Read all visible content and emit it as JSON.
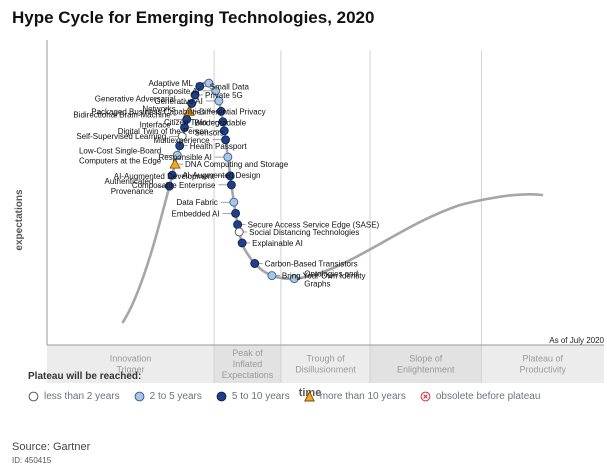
{
  "chart_data": {
    "type": "hype-cycle",
    "title": "Hype Cycle for Emerging Technologies, 2020",
    "ylabel": "expectations",
    "xlabel": "time",
    "as_of": "As of July 2020",
    "phases": [
      {
        "label_lines": [
          "Innovation",
          "Trigger"
        ],
        "x_start": 0.0,
        "x_end": 0.3
      },
      {
        "label_lines": [
          "Peak of",
          "Inflated",
          "Expectations"
        ],
        "x_start": 0.3,
        "x_end": 0.42
      },
      {
        "label_lines": [
          "Trough of",
          "Disillusionment"
        ],
        "x_start": 0.42,
        "x_end": 0.58
      },
      {
        "label_lines": [
          "Slope of",
          "Enlightenment"
        ],
        "x_start": 0.58,
        "x_end": 0.78
      },
      {
        "label_lines": [
          "Plateau of",
          "Productivity"
        ],
        "x_start": 0.78,
        "x_end": 1.0
      }
    ],
    "legend": {
      "title": "Plateau will be reached:",
      "items": [
        {
          "key": "lt2",
          "label": "less than 2 years",
          "shape": "circle",
          "fill": "#ffffff",
          "stroke": "#555555"
        },
        {
          "key": "2to5",
          "label": "2 to 5 years",
          "shape": "circle",
          "fill": "#a9c6e6",
          "stroke": "#3b5f8f"
        },
        {
          "key": "5to10",
          "label": "5 to 10 years",
          "shape": "circle",
          "fill": "#1f3f8a",
          "stroke": "#0f2450"
        },
        {
          "key": "gt10",
          "label": "more than 10 years",
          "shape": "triangle",
          "fill": "#f5a623",
          "stroke": "#7a4a00"
        },
        {
          "key": "obsolete",
          "label": "obsolete before plateau",
          "shape": "xcircle",
          "fill": "#ffffff",
          "stroke": "#d0343c"
        }
      ]
    },
    "technologies": [
      {
        "name": "Authenticated Provenance",
        "label_lines": [
          "Authenticated",
          "Provenance"
        ],
        "class": "5to10",
        "side": "left",
        "pos": 0.19
      },
      {
        "name": "AI-Augmented Design",
        "label_lines": [
          "AI-Augmented Design"
        ],
        "class": "5to10",
        "side": "right",
        "pos": 0.205
      },
      {
        "name": "DNA Computing and Storage",
        "label_lines": [
          "DNA Computing and Storage"
        ],
        "class": "gt10",
        "side": "right",
        "pos": 0.22
      },
      {
        "name": "Low-Cost Single-Board Computers at the Edge",
        "label_lines": [
          "Low-Cost Single-Board",
          "Computers at the Edge"
        ],
        "class": "2to5",
        "side": "left",
        "pos": 0.232
      },
      {
        "name": "Health Passport",
        "label_lines": [
          "Health Passport"
        ],
        "class": "5to10",
        "side": "right",
        "pos": 0.245
      },
      {
        "name": "Self-Supervised Learning",
        "label_lines": [
          "Self-Supervised Learning"
        ],
        "class": "lt2",
        "side": "left",
        "pos": 0.258
      },
      {
        "name": "Biodegradable Sensors",
        "label_lines": [
          "Biodegradable",
          "Sensors"
        ],
        "class": "5to10",
        "side": "right",
        "pos": 0.27
      },
      {
        "name": "Bidirectional Brain-Machine Interface",
        "label_lines": [
          "Bidirectional Brain-Machine",
          "Interface"
        ],
        "class": "5to10",
        "side": "left",
        "pos": 0.281
      },
      {
        "name": "Differential Privacy",
        "label_lines": [
          "Differential Privacy"
        ],
        "class": "gt10",
        "side": "right",
        "pos": 0.292
      },
      {
        "name": "Generative Adversarial Networks",
        "label_lines": [
          "Generative Adversarial",
          "Networks"
        ],
        "class": "5to10",
        "side": "left",
        "pos": 0.303
      },
      {
        "name": "Private 5G",
        "label_lines": [
          "Private 5G"
        ],
        "class": "5to10",
        "side": "right",
        "pos": 0.315
      },
      {
        "name": "Small Data",
        "label_lines": [
          "Small Data"
        ],
        "class": "5to10",
        "side": "right",
        "pos": 0.328
      },
      {
        "name": "Adaptive ML",
        "label_lines": [
          "Adaptive ML"
        ],
        "class": "2to5",
        "side": "left",
        "pos": 0.342
      },
      {
        "name": "Composite AI",
        "label_lines": [
          "Composite AI"
        ],
        "class": "2to5",
        "side": "left",
        "pos": 0.356
      },
      {
        "name": "Generative AI",
        "label_lines": [
          "Generative AI"
        ],
        "class": "2to5",
        "side": "left",
        "pos": 0.37
      },
      {
        "name": "Packaged Business Capabilities",
        "label_lines": [
          "Packaged Business Capabilities"
        ],
        "class": "5to10",
        "side": "left",
        "pos": 0.384
      },
      {
        "name": "Citizen Twin",
        "label_lines": [
          "Citizen Twin"
        ],
        "class": "5to10",
        "side": "left",
        "pos": 0.398
      },
      {
        "name": "Digital Twin of the Person",
        "label_lines": [
          "Digital Twin of the Person"
        ],
        "class": "5to10",
        "side": "left",
        "pos": 0.41
      },
      {
        "name": "Multiexperience",
        "label_lines": [
          "Multiexperience"
        ],
        "class": "5to10",
        "side": "left",
        "pos": 0.422
      },
      {
        "name": "Responsible AI",
        "label_lines": [
          "Responsible AI"
        ],
        "class": "2to5",
        "side": "left",
        "pos": 0.445
      },
      {
        "name": "AI-Augmented Development",
        "label_lines": [
          "AI-Augmented Development"
        ],
        "class": "5to10",
        "side": "left",
        "pos": 0.47
      },
      {
        "name": "Composable Enterprise",
        "label_lines": [
          "Composable Enterprise"
        ],
        "class": "5to10",
        "side": "left",
        "pos": 0.482
      },
      {
        "name": "Data Fabric",
        "label_lines": [
          "Data Fabric"
        ],
        "class": "2to5",
        "side": "left",
        "pos": 0.505
      },
      {
        "name": "Embedded AI",
        "label_lines": [
          "Embedded AI"
        ],
        "class": "5to10",
        "side": "left",
        "pos": 0.52
      },
      {
        "name": "Secure Access Service Edge (SASE)",
        "label_lines": [
          "Secure Access Service Edge (SASE)"
        ],
        "class": "5to10",
        "side": "right",
        "pos": 0.535
      },
      {
        "name": "Social Distancing Technologies",
        "label_lines": [
          "Social Distancing Technologies"
        ],
        "class": "lt2",
        "side": "right",
        "pos": 0.545
      },
      {
        "name": "Explainable AI",
        "label_lines": [
          "Explainable AI"
        ],
        "class": "5to10",
        "side": "right",
        "pos": 0.56
      },
      {
        "name": "Carbon-Based Transistors",
        "label_lines": [
          "Carbon-Based Transistors"
        ],
        "class": "5to10",
        "side": "right",
        "pos": 0.592
      },
      {
        "name": "Bring Your Own Identity",
        "label_lines": [
          "Bring Your Own Identity"
        ],
        "class": "2to5",
        "side": "right",
        "pos": 0.62
      },
      {
        "name": "Ontologies and Graphs",
        "label_lines": [
          "Ontologies and",
          "Graphs"
        ],
        "class": "2to5",
        "side": "right",
        "pos": 0.65
      }
    ]
  },
  "source": "Source: Gartner",
  "doc_id": "ID: 450415"
}
